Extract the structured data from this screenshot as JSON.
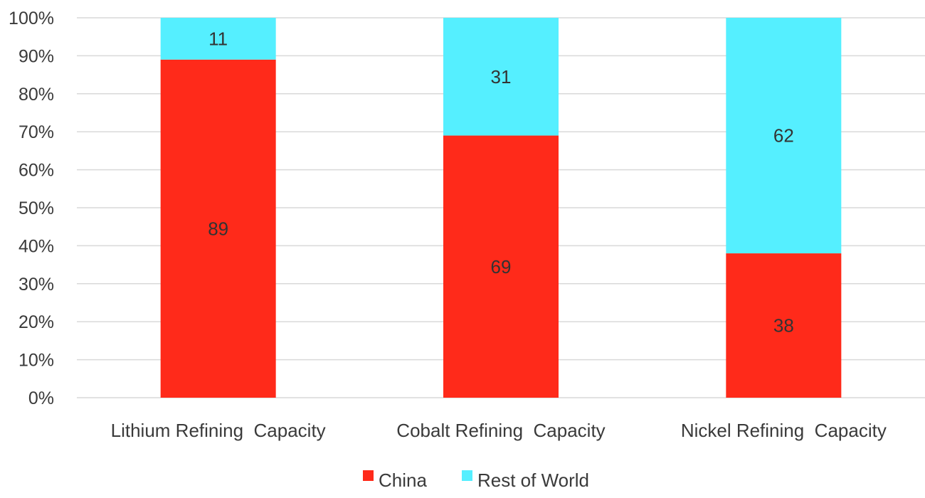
{
  "chart_data": {
    "type": "bar",
    "stacked": true,
    "categories": [
      "Lithium Refining  Capacity",
      "Cobalt Refining  Capacity",
      "Nickel Refining  Capacity"
    ],
    "series": [
      {
        "name": "China",
        "values": [
          89,
          69,
          38
        ],
        "color": "#ff2a1a"
      },
      {
        "name": "Rest of World",
        "values": [
          11,
          31,
          62
        ],
        "color": "#55efff"
      }
    ],
    "ylim": [
      0,
      100
    ],
    "y_ticks": [
      "0%",
      "10%",
      "20%",
      "30%",
      "40%",
      "50%",
      "60%",
      "70%",
      "80%",
      "90%",
      "100%"
    ],
    "grid": true,
    "legend": "bottom-center",
    "gridline_color": "#d9d9d9"
  }
}
